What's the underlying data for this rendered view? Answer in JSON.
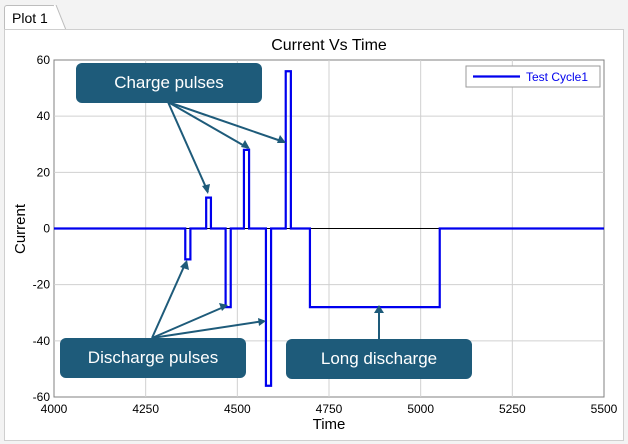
{
  "tabs": [
    {
      "label": "Plot 1"
    }
  ],
  "callouts": {
    "charge": "Charge pulses",
    "discharge": "Discharge pulses",
    "long_discharge": "Long discharge"
  },
  "colors": {
    "series": "#0000ee",
    "callout_bg": "#1e5b7a",
    "arrow": "#1e5b7a",
    "zero_line": "#000000"
  },
  "chart_data": {
    "type": "line",
    "title": "Current Vs Time",
    "xlabel": "Time",
    "ylabel": "Current",
    "xlim": [
      4000,
      5500
    ],
    "ylim": [
      -60,
      60
    ],
    "xticks": [
      4000,
      4250,
      4500,
      4750,
      5000,
      5250,
      5500
    ],
    "yticks": [
      -60,
      -40,
      -20,
      0,
      20,
      40,
      60
    ],
    "grid": true,
    "legend_position": "top-right",
    "series": [
      {
        "name": "Test Cycle1",
        "x": [
          4000,
          4358,
          4358,
          4372,
          4372,
          4415,
          4415,
          4428,
          4428,
          4468,
          4468,
          4482,
          4482,
          4518,
          4518,
          4532,
          4532,
          4578,
          4578,
          4592,
          4592,
          4632,
          4632,
          4646,
          4646,
          4698,
          4698,
          5052,
          5052,
          5500
        ],
        "y": [
          0,
          0,
          -11,
          -11,
          0,
          0,
          11,
          11,
          0,
          0,
          -28,
          -28,
          0,
          0,
          28,
          28,
          0,
          0,
          -56,
          -56,
          0,
          0,
          56,
          56,
          0,
          0,
          -28,
          -28,
          0,
          0
        ]
      }
    ]
  }
}
